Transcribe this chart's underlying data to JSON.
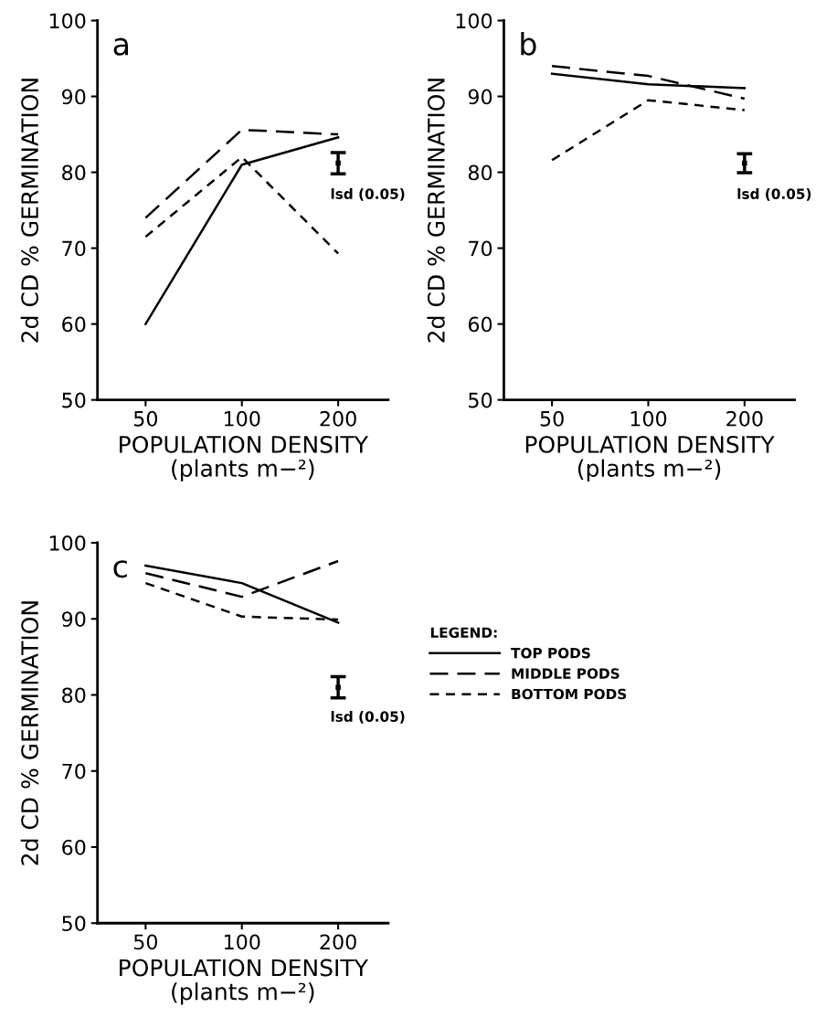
{
  "chart_data": [
    {
      "type": "line",
      "title": "a",
      "xlabel": "POPULATION DENSITY\n(plants m−²)",
      "ylabel": "2d CD % GERMINATION",
      "categories": [
        "50",
        "100",
        "200"
      ],
      "ylim": [
        50,
        100
      ],
      "yticks": [
        50,
        60,
        70,
        80,
        90,
        100
      ],
      "grid": false,
      "series": [
        {
          "color": "#000000",
          "line_style": "solid",
          "values": [
            60,
            81,
            84.6
          ]
        },
        {
          "color": "#000000",
          "line_style": "dashed",
          "values": [
            74,
            85.6,
            85
          ]
        },
        {
          "color": "#000000",
          "line_style": "dashed",
          "values": [
            71.5,
            82,
            69.3
          ]
        },
        {
          "type": "scatter",
          "color": "#000000",
          "values": [
            null,
            null,
            81.2
          ],
          "errors": [
            null,
            null,
            1.4
          ]
        }
      ],
      "annotations": [
        "lsd (0.05)"
      ]
    },
    {
      "type": "line",
      "title": "b",
      "xlabel": "POPULATION DENSITY\n(plants m−²)",
      "ylabel": "2d CD % GERMINATION",
      "categories": [
        "50",
        "100",
        "200"
      ],
      "ylim": [
        50,
        100
      ],
      "yticks": [
        50,
        60,
        70,
        80,
        90,
        100
      ],
      "grid": false,
      "series": [
        {
          "color": "#000000",
          "line_style": "solid",
          "values": [
            93,
            91.6,
            91.1
          ]
        },
        {
          "color": "#000000",
          "line_style": "dashed",
          "values": [
            94,
            92.7,
            89.7
          ]
        },
        {
          "color": "#000000",
          "line_style": "dashed",
          "values": [
            81.6,
            89.5,
            88.2
          ]
        },
        {
          "type": "scatter",
          "color": "#000000",
          "values": [
            null,
            null,
            81.2
          ],
          "errors": [
            null,
            null,
            1.25
          ]
        }
      ],
      "annotations": [
        "lsd (0.05)"
      ]
    },
    {
      "type": "line",
      "title": "c",
      "xlabel": "POPULATION DENSITY\n(plants m−²)",
      "ylabel": "2d CD % GERMINATION",
      "categories": [
        "50",
        "100",
        "200"
      ],
      "ylim": [
        50,
        100
      ],
      "yticks": [
        50,
        60,
        70,
        80,
        90,
        100
      ],
      "grid": false,
      "legend": "right",
      "legend_title": "LEGEND:",
      "series": [
        {
          "name": "TOP PODS",
          "color": "#000000",
          "line_style": "solid",
          "values": [
            97,
            94.7,
            89.5
          ]
        },
        {
          "name": "MIDDLE PODS",
          "color": "#000000",
          "line_style": "dashed",
          "values": [
            96,
            92.9,
            97.6
          ]
        },
        {
          "name": "BOTTOM PODS",
          "color": "#000000",
          "line_style": "dashed",
          "values": [
            94.7,
            90.3,
            89.9
          ]
        },
        {
          "type": "scatter",
          "color": "#000000",
          "values": [
            null,
            null,
            81
          ],
          "errors": [
            null,
            null,
            1.4
          ]
        }
      ],
      "annotations": [
        "lsd (0.05)"
      ]
    }
  ]
}
